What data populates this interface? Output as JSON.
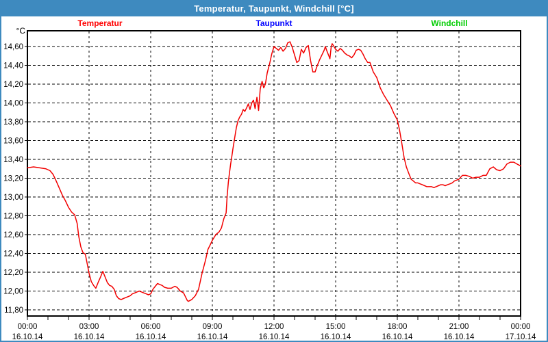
{
  "window": {
    "title": "Temperatur, Taupunkt, Windchill [°C]",
    "frame_color": "#3e8abf",
    "titlebar_text_color": "#ffffff"
  },
  "legend": {
    "items": [
      {
        "label": "Temperatur",
        "color": "#ff0000"
      },
      {
        "label": "Taupunkt",
        "color": "#0000ff"
      },
      {
        "label": "Windchill",
        "color": "#00cc00"
      }
    ]
  },
  "axes": {
    "y": {
      "unit": "°C",
      "ticks": [
        {
          "v": 11.8,
          "label": "11,80"
        },
        {
          "v": 12.0,
          "label": "12,00"
        },
        {
          "v": 12.2,
          "label": "12,20"
        },
        {
          "v": 12.4,
          "label": "12,40"
        },
        {
          "v": 12.6,
          "label": "12,60"
        },
        {
          "v": 12.8,
          "label": "12,80"
        },
        {
          "v": 13.0,
          "label": "13,00"
        },
        {
          "v": 13.2,
          "label": "13,20"
        },
        {
          "v": 13.4,
          "label": "13,40"
        },
        {
          "v": 13.6,
          "label": "13,60"
        },
        {
          "v": 13.8,
          "label": "13,80"
        },
        {
          "v": 14.0,
          "label": "14,00"
        },
        {
          "v": 14.2,
          "label": "14,20"
        },
        {
          "v": 14.4,
          "label": "14,40"
        },
        {
          "v": 14.6,
          "label": "14,60"
        }
      ]
    },
    "x": {
      "minor_tick_every_hours": 1,
      "ticks": [
        {
          "h": 0,
          "time": "00:00",
          "date": "16.10.14"
        },
        {
          "h": 3,
          "time": "03:00",
          "date": "16.10.14"
        },
        {
          "h": 6,
          "time": "06:00",
          "date": "16.10.14"
        },
        {
          "h": 9,
          "time": "09:00",
          "date": "16.10.14"
        },
        {
          "h": 12,
          "time": "12:00",
          "date": "16.10.14"
        },
        {
          "h": 15,
          "time": "15:00",
          "date": "16.10.14"
        },
        {
          "h": 18,
          "time": "18:00",
          "date": "16.10.14"
        },
        {
          "h": 21,
          "time": "21:00",
          "date": "16.10.14"
        },
        {
          "h": 24,
          "time": "00:00",
          "date": "17.10.14"
        }
      ]
    }
  },
  "chart_data": {
    "type": "line",
    "title": "Temperatur, Taupunkt, Windchill [°C]",
    "ylabel": "°C",
    "ylim": [
      11.8,
      14.6
    ],
    "y_grid_step": 0.2,
    "xlim_hours": [
      0,
      24
    ],
    "x_grid_step_hours": 3,
    "x_start": "16.10.14 00:00",
    "x_end": "17.10.14 00:00",
    "grid": true,
    "legend_position": "top",
    "series": [
      {
        "name": "Temperatur",
        "color": "#f20000",
        "visible": true,
        "points": [
          [
            0,
            13.31
          ],
          [
            0.3,
            13.32
          ],
          [
            0.6,
            13.31
          ],
          [
            0.9,
            13.3
          ],
          [
            1.1,
            13.28
          ],
          [
            1.25,
            13.24
          ],
          [
            1.4,
            13.17
          ],
          [
            1.56,
            13.09
          ],
          [
            1.7,
            13.02
          ],
          [
            1.85,
            12.96
          ],
          [
            2,
            12.89
          ],
          [
            2.15,
            12.84
          ],
          [
            2.3,
            12.81
          ],
          [
            2.42,
            12.72
          ],
          [
            2.5,
            12.58
          ],
          [
            2.6,
            12.47
          ],
          [
            2.7,
            12.41
          ],
          [
            2.82,
            12.39
          ],
          [
            2.92,
            12.28
          ],
          [
            3,
            12.19
          ],
          [
            3.11,
            12.1
          ],
          [
            3.22,
            12.06
          ],
          [
            3.33,
            12.03
          ],
          [
            3.44,
            12.09
          ],
          [
            3.56,
            12.15
          ],
          [
            3.67,
            12.21
          ],
          [
            3.78,
            12.15
          ],
          [
            3.89,
            12.09
          ],
          [
            4,
            12.06
          ],
          [
            4.11,
            12.05
          ],
          [
            4.22,
            12.02
          ],
          [
            4.33,
            11.95
          ],
          [
            4.44,
            11.92
          ],
          [
            4.56,
            11.91
          ],
          [
            4.67,
            11.92
          ],
          [
            4.78,
            11.93
          ],
          [
            4.89,
            11.94
          ],
          [
            5,
            11.95
          ],
          [
            5.11,
            11.97
          ],
          [
            5.22,
            11.98
          ],
          [
            5.33,
            11.99
          ],
          [
            5.44,
            12
          ],
          [
            5.56,
            11.99
          ],
          [
            5.67,
            11.98
          ],
          [
            5.78,
            11.97
          ],
          [
            5.89,
            11.96
          ],
          [
            6,
            11.97
          ],
          [
            6.11,
            12.02
          ],
          [
            6.22,
            12.05
          ],
          [
            6.33,
            12.08
          ],
          [
            6.44,
            12.07
          ],
          [
            6.56,
            12.06
          ],
          [
            6.67,
            12.04
          ],
          [
            6.83,
            12.03
          ],
          [
            7,
            12.03
          ],
          [
            7.17,
            12.05
          ],
          [
            7.28,
            12.04
          ],
          [
            7.44,
            12
          ],
          [
            7.6,
            11.98
          ],
          [
            7.78,
            11.9
          ],
          [
            7.83,
            11.89
          ],
          [
            8,
            11.91
          ],
          [
            8.17,
            11.95
          ],
          [
            8.33,
            12.02
          ],
          [
            8.5,
            12.19
          ],
          [
            8.67,
            12.33
          ],
          [
            8.78,
            12.44
          ],
          [
            8.87,
            12.48
          ],
          [
            9,
            12.54
          ],
          [
            9.17,
            12.6
          ],
          [
            9.33,
            12.63
          ],
          [
            9.44,
            12.67
          ],
          [
            9.56,
            12.77
          ],
          [
            9.67,
            12.83
          ],
          [
            9.72,
            13.01
          ],
          [
            9.78,
            13.16
          ],
          [
            9.83,
            13.25
          ],
          [
            9.89,
            13.35
          ],
          [
            9.94,
            13.42
          ],
          [
            10,
            13.51
          ],
          [
            10.08,
            13.62
          ],
          [
            10.17,
            13.74
          ],
          [
            10.25,
            13.81
          ],
          [
            10.33,
            13.85
          ],
          [
            10.42,
            13.88
          ],
          [
            10.5,
            13.93
          ],
          [
            10.58,
            13.91
          ],
          [
            10.67,
            13.95
          ],
          [
            10.75,
            13.99
          ],
          [
            10.83,
            13.93
          ],
          [
            10.92,
            14
          ],
          [
            11,
            14.03
          ],
          [
            11.08,
            13.94
          ],
          [
            11.17,
            14.06
          ],
          [
            11.25,
            13.92
          ],
          [
            11.33,
            14.15
          ],
          [
            11.42,
            14.23
          ],
          [
            11.5,
            14.16
          ],
          [
            11.58,
            14.2
          ],
          [
            11.67,
            14.32
          ],
          [
            11.78,
            14.41
          ],
          [
            11.89,
            14.52
          ],
          [
            12,
            14.6
          ],
          [
            12.11,
            14.58
          ],
          [
            12.22,
            14.56
          ],
          [
            12.33,
            14.59
          ],
          [
            12.44,
            14.55
          ],
          [
            12.56,
            14.58
          ],
          [
            12.67,
            14.64
          ],
          [
            12.78,
            14.65
          ],
          [
            12.89,
            14.59
          ],
          [
            13,
            14.51
          ],
          [
            13.11,
            14.43
          ],
          [
            13.22,
            14.45
          ],
          [
            13.33,
            14.57
          ],
          [
            13.44,
            14.53
          ],
          [
            13.56,
            14.59
          ],
          [
            13.67,
            14.61
          ],
          [
            13.78,
            14.45
          ],
          [
            13.89,
            14.33
          ],
          [
            14,
            14.33
          ],
          [
            14.11,
            14.4
          ],
          [
            14.22,
            14.46
          ],
          [
            14.33,
            14.51
          ],
          [
            14.44,
            14.56
          ],
          [
            14.5,
            14.6
          ],
          [
            14.56,
            14.56
          ],
          [
            14.67,
            14.5
          ],
          [
            14.72,
            14.47
          ],
          [
            14.78,
            14.59
          ],
          [
            14.83,
            14.63
          ],
          [
            14.89,
            14.61
          ],
          [
            15,
            14.57
          ],
          [
            15.11,
            14.55
          ],
          [
            15.22,
            14.58
          ],
          [
            15.33,
            14.56
          ],
          [
            15.44,
            14.53
          ],
          [
            15.56,
            14.51
          ],
          [
            15.67,
            14.5
          ],
          [
            15.78,
            14.48
          ],
          [
            15.89,
            14.51
          ],
          [
            16,
            14.56
          ],
          [
            16.11,
            14.57
          ],
          [
            16.22,
            14.56
          ],
          [
            16.33,
            14.52
          ],
          [
            16.44,
            14.47
          ],
          [
            16.56,
            14.43
          ],
          [
            16.67,
            14.43
          ],
          [
            16.83,
            14.33
          ],
          [
            17,
            14.27
          ],
          [
            17.17,
            14.16
          ],
          [
            17.33,
            14.09
          ],
          [
            17.5,
            14.03
          ],
          [
            17.67,
            13.97
          ],
          [
            17.83,
            13.89
          ],
          [
            18,
            13.82
          ],
          [
            18.11,
            13.71
          ],
          [
            18.22,
            13.57
          ],
          [
            18.33,
            13.42
          ],
          [
            18.44,
            13.32
          ],
          [
            18.56,
            13.25
          ],
          [
            18.67,
            13.19
          ],
          [
            18.78,
            13.17
          ],
          [
            18.89,
            13.15
          ],
          [
            19,
            13.15
          ],
          [
            19.11,
            13.14
          ],
          [
            19.22,
            13.13
          ],
          [
            19.33,
            13.12
          ],
          [
            19.44,
            13.11
          ],
          [
            19.56,
            13.11
          ],
          [
            19.67,
            13.11
          ],
          [
            19.78,
            13.1
          ],
          [
            19.89,
            13.11
          ],
          [
            20,
            13.12
          ],
          [
            20.11,
            13.13
          ],
          [
            20.22,
            13.13
          ],
          [
            20.33,
            13.12
          ],
          [
            20.44,
            13.13
          ],
          [
            20.56,
            13.14
          ],
          [
            20.67,
            13.15
          ],
          [
            20.78,
            13.17
          ],
          [
            20.89,
            13.18
          ],
          [
            21,
            13.19
          ],
          [
            21.17,
            13.23
          ],
          [
            21.33,
            13.23
          ],
          [
            21.5,
            13.22
          ],
          [
            21.67,
            13.2
          ],
          [
            21.83,
            13.21
          ],
          [
            22,
            13.21
          ],
          [
            22.17,
            13.23
          ],
          [
            22.33,
            13.23
          ],
          [
            22.5,
            13.3
          ],
          [
            22.67,
            13.32
          ],
          [
            22.83,
            13.29
          ],
          [
            23,
            13.28
          ],
          [
            23.17,
            13.3
          ],
          [
            23.33,
            13.35
          ],
          [
            23.5,
            13.37
          ],
          [
            23.67,
            13.37
          ],
          [
            23.83,
            13.35
          ],
          [
            24,
            13.33
          ]
        ]
      },
      {
        "name": "Taupunkt",
        "color": "#0000ff",
        "visible": false,
        "points": [],
        "note": "no line visible within plotted y-range"
      },
      {
        "name": "Windchill",
        "color": "#00cc00",
        "visible": false,
        "points": [],
        "note": "no separate line visible (coincides with / hidden by Temperatur)"
      }
    ]
  }
}
